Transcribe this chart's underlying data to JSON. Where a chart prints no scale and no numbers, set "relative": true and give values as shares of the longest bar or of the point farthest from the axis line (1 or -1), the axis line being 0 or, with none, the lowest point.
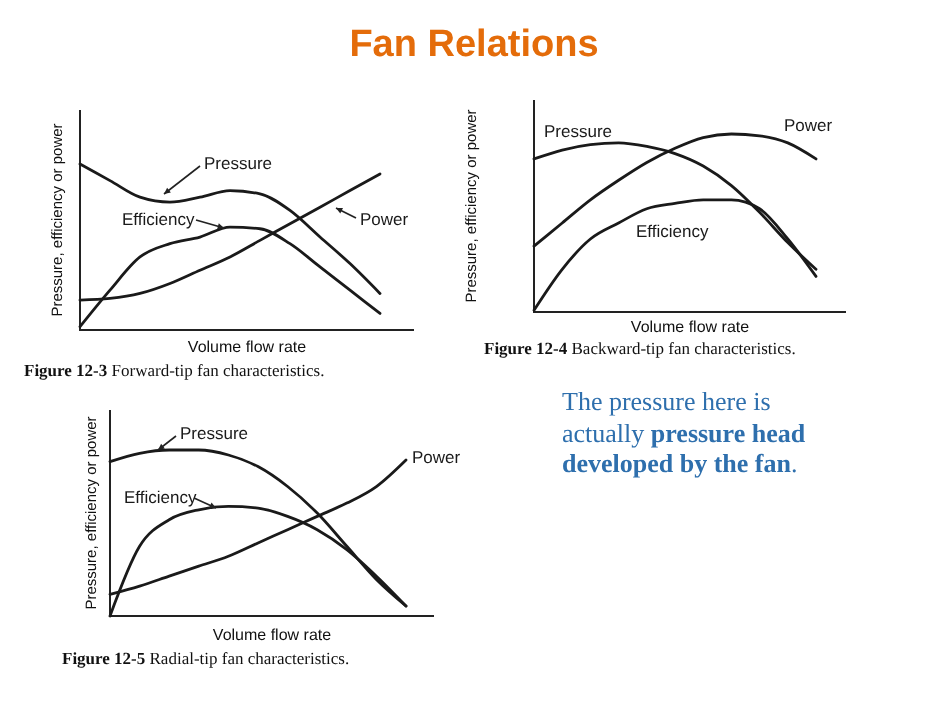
{
  "chart_data": [
    {
      "type": "other",
      "title": "Fan Relations"
    },
    {
      "type": "line",
      "relative": true,
      "xlabel": "Volume flow rate",
      "ylabel": "Pressure, efficiency or power",
      "annotations": [
        "Figure 12-3  Forward-tip fan characteristics."
      ],
      "categories": [
        null,
        null,
        null,
        null,
        null,
        null,
        null,
        null,
        null,
        null,
        null
      ],
      "series": [
        {
          "name": "Pressure",
          "color": "#1a1a1a",
          "values": [
            1,
            0.9,
            0.8,
            0.77,
            0.8,
            0.84,
            0.82,
            0.72,
            0.56,
            0.4,
            0.22
          ]
        },
        {
          "name": "Efficiency",
          "color": "#1a1a1a",
          "values": [
            0.02,
            0.24,
            0.44,
            0.52,
            0.56,
            0.62,
            0.61,
            0.52,
            0.38,
            0.24,
            0.1
          ]
        },
        {
          "name": "Power",
          "color": "#1a1a1a",
          "values": [
            0.18,
            0.19,
            0.22,
            0.28,
            0.36,
            0.44,
            0.54,
            0.64,
            0.74,
            0.84,
            0.94
          ]
        }
      ]
    },
    {
      "type": "line",
      "relative": true,
      "xlabel": "Volume flow rate",
      "ylabel": "Pressure, efficiency or power",
      "annotations": [
        "Figure 12-4  Backward-tip fan characteristics."
      ],
      "categories": [
        null,
        null,
        null,
        null,
        null,
        null,
        null,
        null,
        null,
        null,
        null
      ],
      "series": [
        {
          "name": "Pressure",
          "color": "#1a1a1a",
          "values": [
            0.86,
            0.91,
            0.94,
            0.95,
            0.93,
            0.89,
            0.82,
            0.71,
            0.56,
            0.39,
            0.24
          ]
        },
        {
          "name": "Power",
          "color": "#1a1a1a",
          "values": [
            0.37,
            0.5,
            0.63,
            0.74,
            0.84,
            0.92,
            0.98,
            1,
            0.99,
            0.95,
            0.86
          ]
        },
        {
          "name": "Efficiency",
          "color": "#1a1a1a",
          "values": [
            0.01,
            0.24,
            0.41,
            0.5,
            0.58,
            0.61,
            0.63,
            0.63,
            0.58,
            0.41,
            0.2
          ]
        }
      ]
    },
    {
      "type": "line",
      "relative": true,
      "xlabel": "Volume flow rate",
      "ylabel": "Pressure, efficiency or power",
      "annotations": [
        "Figure 12-5  Radial-tip fan characteristics."
      ],
      "categories": [
        null,
        null,
        null,
        null,
        null,
        null,
        null,
        null,
        null,
        null,
        null
      ],
      "series": [
        {
          "name": "Pressure",
          "color": "#1a1a1a",
          "values": [
            0.93,
            0.98,
            1,
            1,
            0.97,
            0.9,
            0.78,
            0.62,
            0.42,
            0.22,
            0.06
          ]
        },
        {
          "name": "Power",
          "color": "#1a1a1a",
          "values": [
            0.13,
            0.18,
            0.24,
            0.3,
            0.36,
            0.44,
            0.52,
            0.6,
            0.68,
            0.78,
            0.94
          ]
        },
        {
          "name": "Efficiency",
          "color": "#1a1a1a",
          "values": [
            0,
            0.42,
            0.58,
            0.64,
            0.66,
            0.65,
            0.6,
            0.52,
            0.4,
            0.24,
            0.06
          ]
        }
      ]
    },
    {
      "type": "other",
      "annotations": [
        "The pressure here is actually ",
        "pressure head developed by the fan",
        "."
      ]
    }
  ]
}
